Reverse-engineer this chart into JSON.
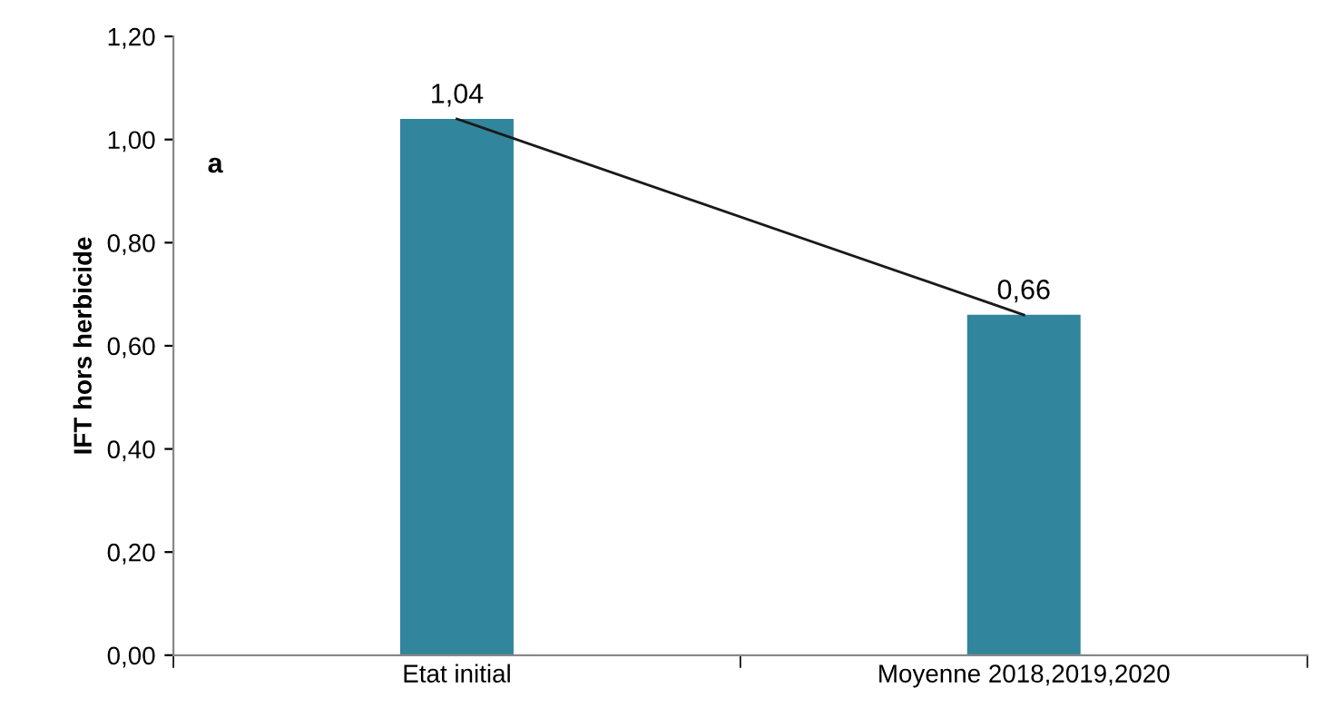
{
  "chart_data": {
    "type": "bar",
    "ylabel": "IFT hors herbicide",
    "categories": [
      "Etat initial",
      "Moyenne 2018,2019,2020"
    ],
    "series": [
      {
        "color": "#31859c",
        "values": [
          1.04,
          0.66
        ],
        "value_labels": [
          "1,04",
          "0,66"
        ]
      },
      {
        "type": "line",
        "color": "#1a1a1a",
        "values": [
          1.04,
          0.66
        ]
      }
    ],
    "annotations": [
      "a"
    ],
    "ylim": [
      0,
      1.2
    ],
    "yticks": [
      {
        "value": 0,
        "label": "0,00"
      },
      {
        "value": 0.2,
        "label": "0,20"
      },
      {
        "value": 0.4,
        "label": "0,40"
      },
      {
        "value": 0.6,
        "label": "0,60"
      },
      {
        "value": 0.8,
        "label": "0,80"
      },
      {
        "value": 1.0,
        "label": "1,00"
      },
      {
        "value": 1.2,
        "label": "1,20"
      }
    ],
    "grid": false,
    "legend": false
  }
}
